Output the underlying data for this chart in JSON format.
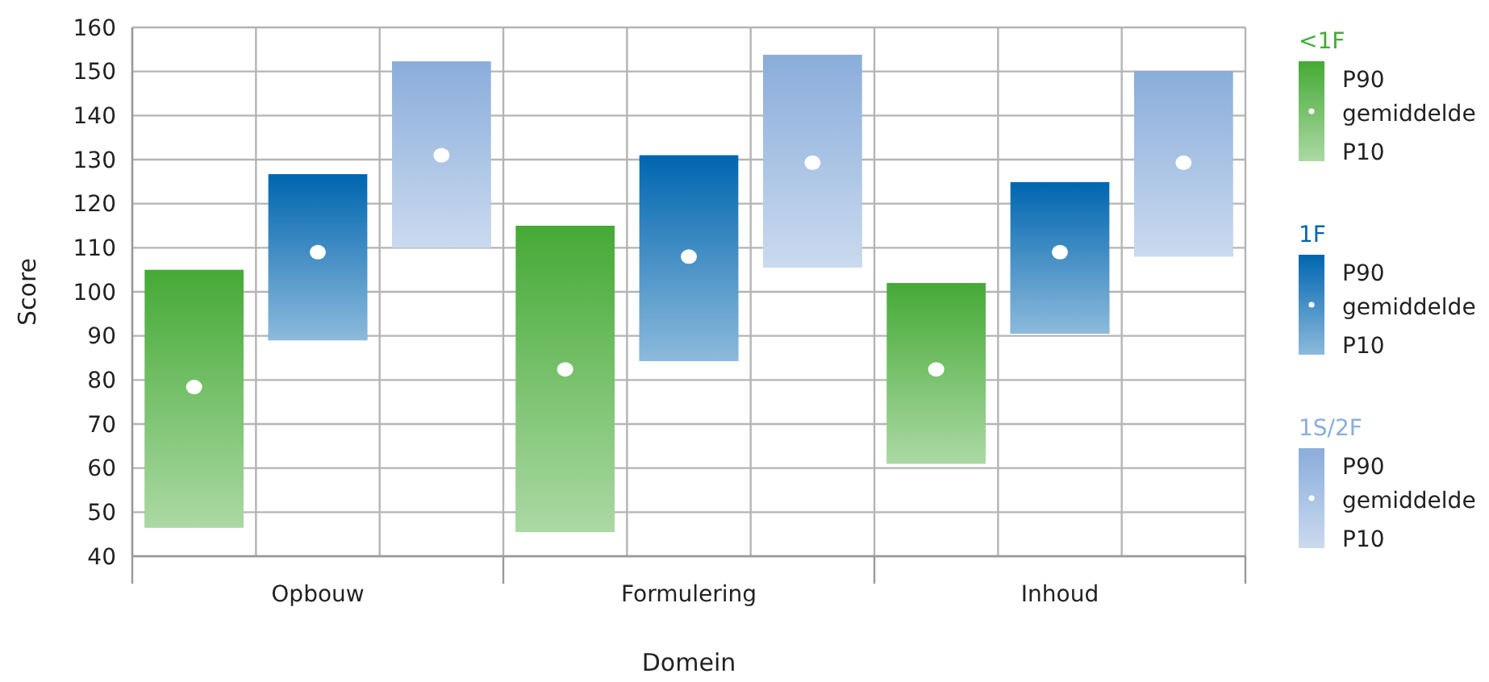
{
  "chart_data": {
    "type": "bar",
    "xlabel": "Domein",
    "ylabel": "Score",
    "categories": [
      "Opbouw",
      "Formulering",
      "Inhoud"
    ],
    "ylim": [
      40,
      160
    ],
    "yticks": [
      40,
      50,
      60,
      70,
      80,
      90,
      100,
      110,
      120,
      130,
      140,
      150,
      160
    ],
    "grid": true,
    "legend": "right",
    "series": [
      {
        "name": "<1F",
        "color": "#45aa35",
        "base": [
          46.5,
          45.5,
          61
        ],
        "values": [
          58.5,
          69.5,
          41
        ]
      },
      {
        "name": "1F",
        "color": "#0066b0",
        "base": [
          89,
          84.3,
          90.5
        ],
        "values": [
          37.7,
          46.7,
          34.4
        ]
      },
      {
        "name": "1S/2F",
        "color": "#8aaddb",
        "base": [
          110,
          105.5,
          108
        ],
        "values": [
          42.3,
          48.3,
          42.1
        ]
      },
      {
        "type": "scatter",
        "name": "gemiddelde",
        "color": "#ffffff",
        "marker": "circle",
        "x": [
          "Opbouw",
          "Formulering",
          "Inhoud"
        ],
        "values": [
          78.4,
          82.4,
          82.4
        ]
      },
      {
        "type": "scatter",
        "name": "gemiddelde",
        "color": "#ffffff",
        "marker": "circle",
        "x": [
          "Opbouw",
          "Formulering",
          "Inhoud"
        ],
        "values": [
          109,
          108,
          109
        ]
      },
      {
        "type": "scatter",
        "name": "gemiddelde",
        "color": "#ffffff",
        "marker": "circle",
        "x": [
          "Opbouw",
          "Formulering",
          "Inhoud"
        ],
        "values": [
          131,
          129.3,
          129.3
        ]
      }
    ],
    "annotations": [
      "P90",
      "P10",
      "P90",
      "P10",
      "P90",
      "P10"
    ]
  }
}
